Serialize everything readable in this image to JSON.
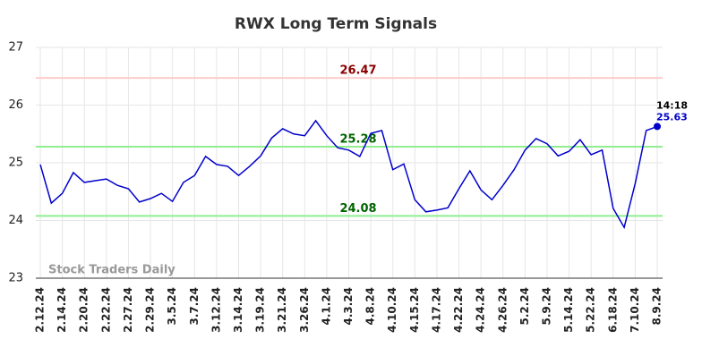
{
  "chart_data": {
    "type": "line",
    "title": "RWX Long Term Signals",
    "categories": [
      "2.12.24",
      null,
      "2.14.24",
      null,
      "2.20.24",
      null,
      "2.22.24",
      null,
      "2.27.24",
      null,
      "2.29.24",
      null,
      "3.5.24",
      null,
      "3.7.24",
      null,
      "3.12.24",
      null,
      "3.14.24",
      null,
      "3.19.24",
      null,
      "3.21.24",
      null,
      "3.26.24",
      null,
      "4.1.24",
      null,
      "4.3.24",
      null,
      "4.8.24",
      null,
      "4.10.24",
      null,
      "4.15.24",
      null,
      "4.17.24",
      null,
      "4.22.24",
      null,
      "4.24.24",
      null,
      "4.26.24",
      null,
      "5.2.24",
      null,
      "5.9.24",
      null,
      "5.14.24",
      null,
      "5.22.24",
      null,
      "6.18.24",
      null,
      "7.10.24",
      null,
      "8.9.24"
    ],
    "values": [
      24.97,
      24.3,
      24.47,
      24.83,
      24.66,
      24.69,
      24.72,
      24.61,
      24.55,
      24.32,
      24.38,
      24.47,
      24.33,
      24.66,
      24.78,
      25.11,
      24.97,
      24.94,
      24.78,
      24.94,
      25.12,
      25.43,
      25.59,
      25.5,
      25.47,
      25.73,
      25.47,
      25.26,
      25.22,
      25.11,
      25.51,
      25.56,
      24.88,
      24.98,
      24.36,
      24.15,
      24.18,
      24.22,
      24.55,
      24.86,
      24.53,
      24.36,
      24.61,
      24.88,
      25.22,
      25.42,
      25.33,
      25.12,
      25.2,
      25.4,
      25.14,
      25.22,
      24.21,
      23.88,
      24.64,
      25.56,
      25.63
    ],
    "color": "#0000cc",
    "ylim": [
      23,
      27
    ],
    "yticks": [
      23,
      24,
      25,
      26,
      27
    ],
    "grid": true,
    "hlines": [
      {
        "value": 26.47,
        "color": "#ffcccc",
        "label_color": "#8b0000"
      },
      {
        "value": 25.28,
        "color": "#90ee90",
        "label_color": "#006400"
      },
      {
        "value": 24.08,
        "color": "#90ee90",
        "label_color": "#006400"
      }
    ],
    "last_point_label": "14:18",
    "watermark": "Stock Traders Daily"
  }
}
